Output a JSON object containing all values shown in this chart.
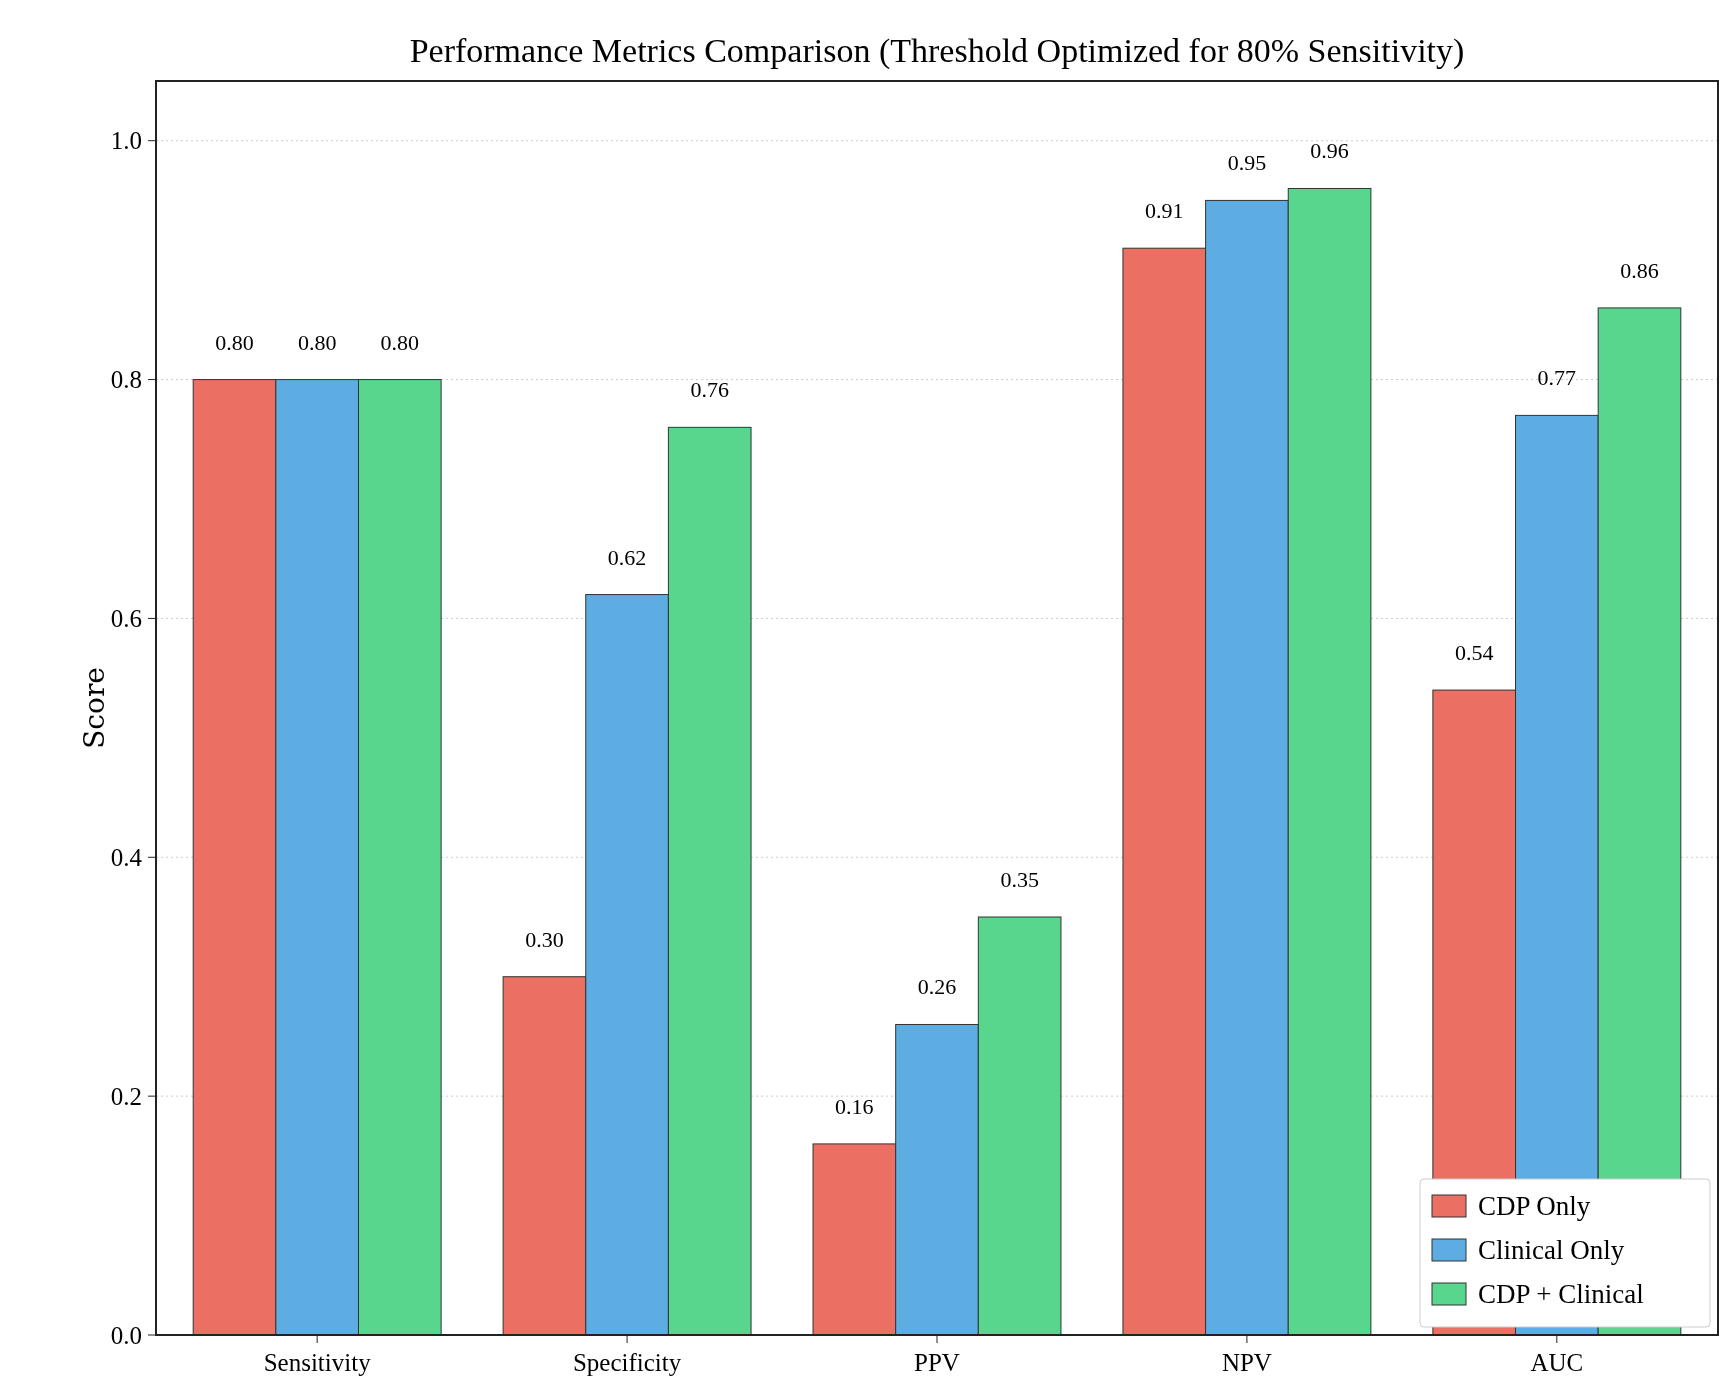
{
  "chart_data": {
    "type": "bar",
    "title": "Performance Metrics Comparison (Threshold Optimized for 80% Sensitivity)",
    "ylabel": "Score",
    "categories": [
      "Sensitivity",
      "Specificity",
      "PPV",
      "NPV",
      "AUC"
    ],
    "series": [
      {
        "name": "CDP Only",
        "color": "#eb6f62",
        "values": [
          0.8,
          0.3,
          0.16,
          0.91,
          0.54
        ],
        "value_labels": [
          "0.80",
          "0.30",
          "0.16",
          "0.91",
          "0.54"
        ]
      },
      {
        "name": "Clinical Only",
        "color": "#5dade2",
        "values": [
          0.8,
          0.62,
          0.26,
          0.95,
          0.77
        ],
        "value_labels": [
          "0.80",
          "0.62",
          "0.26",
          "0.95",
          "0.77"
        ]
      },
      {
        "name": "CDP + Clinical",
        "color": "#58d68d",
        "values": [
          0.8,
          0.76,
          0.35,
          0.96,
          0.86
        ],
        "value_labels": [
          "0.80",
          "0.76",
          "0.35",
          "0.96",
          "0.86"
        ]
      }
    ],
    "ylim": [
      0,
      1.05
    ],
    "yticks": [
      {
        "value": 0,
        "label": "0.0"
      },
      0.2,
      0.4,
      0.6,
      0.8,
      {
        "value": 1,
        "label": "1.0"
      }
    ],
    "grid": "y",
    "legend": "bottom right"
  }
}
